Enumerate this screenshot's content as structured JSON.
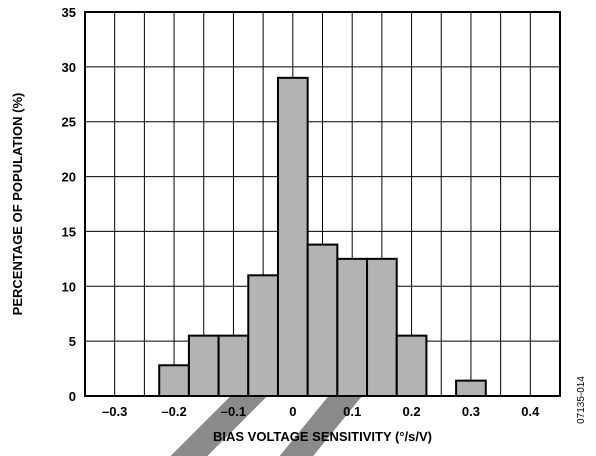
{
  "chart_data": {
    "type": "bar",
    "xlabel": "BIAS VOLTAGE SENSITIVITY (°/s/V)",
    "ylabel": "PERCENTAGE OF POPULATION (%)",
    "xlim": [
      -0.35,
      0.45
    ],
    "ylim": [
      0,
      35
    ],
    "x_ticks": [
      -0.3,
      -0.2,
      -0.1,
      0,
      0.1,
      0.2,
      0.3,
      0.4
    ],
    "x_tick_labels": [
      "–0.3",
      "–0.2",
      "–0.1",
      "0",
      "0.1",
      "0.2",
      "0.3",
      "0.4"
    ],
    "y_ticks": [
      0,
      5,
      10,
      15,
      20,
      25,
      30,
      35
    ],
    "y_tick_labels": [
      "0",
      "5",
      "10",
      "15",
      "20",
      "25",
      "30",
      "35"
    ],
    "grid": true,
    "bin_width": 0.05,
    "bar_color": "#b3b3b3",
    "bars": [
      {
        "x": -0.2,
        "value": 2.8
      },
      {
        "x": -0.15,
        "value": 5.5
      },
      {
        "x": -0.1,
        "value": 5.5
      },
      {
        "x": -0.05,
        "value": 11.0
      },
      {
        "x": 0.0,
        "value": 29.0
      },
      {
        "x": 0.05,
        "value": 13.8
      },
      {
        "x": 0.1,
        "value": 12.5
      },
      {
        "x": 0.15,
        "value": 12.5
      },
      {
        "x": 0.2,
        "value": 5.5
      },
      {
        "x": 0.3,
        "value": 1.4
      }
    ]
  },
  "figure_id": "07135-014"
}
